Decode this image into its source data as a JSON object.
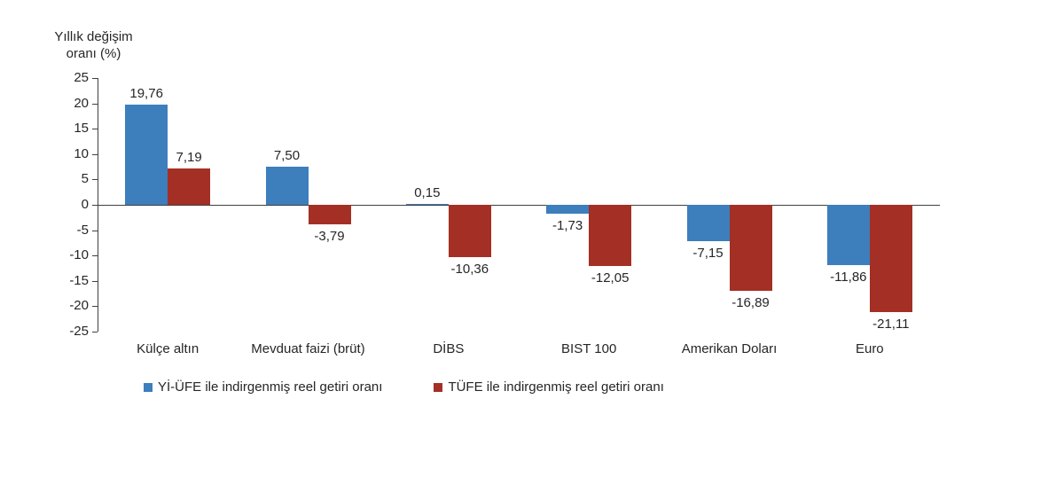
{
  "chart_data": {
    "type": "bar",
    "title": "",
    "y_axis_title_lines": [
      "Yıllık değişim",
      "oranı (%)"
    ],
    "categories": [
      "Külçe altın",
      "Mevduat faizi (brüt)",
      "DİBS",
      "BIST 100",
      "Amerikan Doları",
      "Euro"
    ],
    "series": [
      {
        "name": "Yİ-ÜFE ile indirgenmiş reel getiri oranı",
        "color": "#3d7ebd",
        "values": [
          19.76,
          7.5,
          0.15,
          -1.73,
          -7.15,
          -11.86
        ],
        "labels": [
          "19,76",
          "7,50",
          "0,15",
          "-1,73",
          "-7,15",
          "-11,86"
        ]
      },
      {
        "name": "TÜFE ile indirgenmiş reel getiri oranı",
        "color": "#a42f24",
        "values": [
          7.19,
          -3.79,
          -10.36,
          -12.05,
          -16.89,
          -21.11
        ],
        "labels": [
          "7,19",
          "-3,79",
          "-10,36",
          "-12,05",
          "-16,89",
          "-21,11"
        ]
      }
    ],
    "ylim": [
      -25,
      25
    ],
    "yticks": [
      25,
      20,
      15,
      10,
      5,
      0,
      -5,
      -10,
      -15,
      -20,
      -25
    ],
    "grid": false,
    "legend_position": "bottom"
  }
}
